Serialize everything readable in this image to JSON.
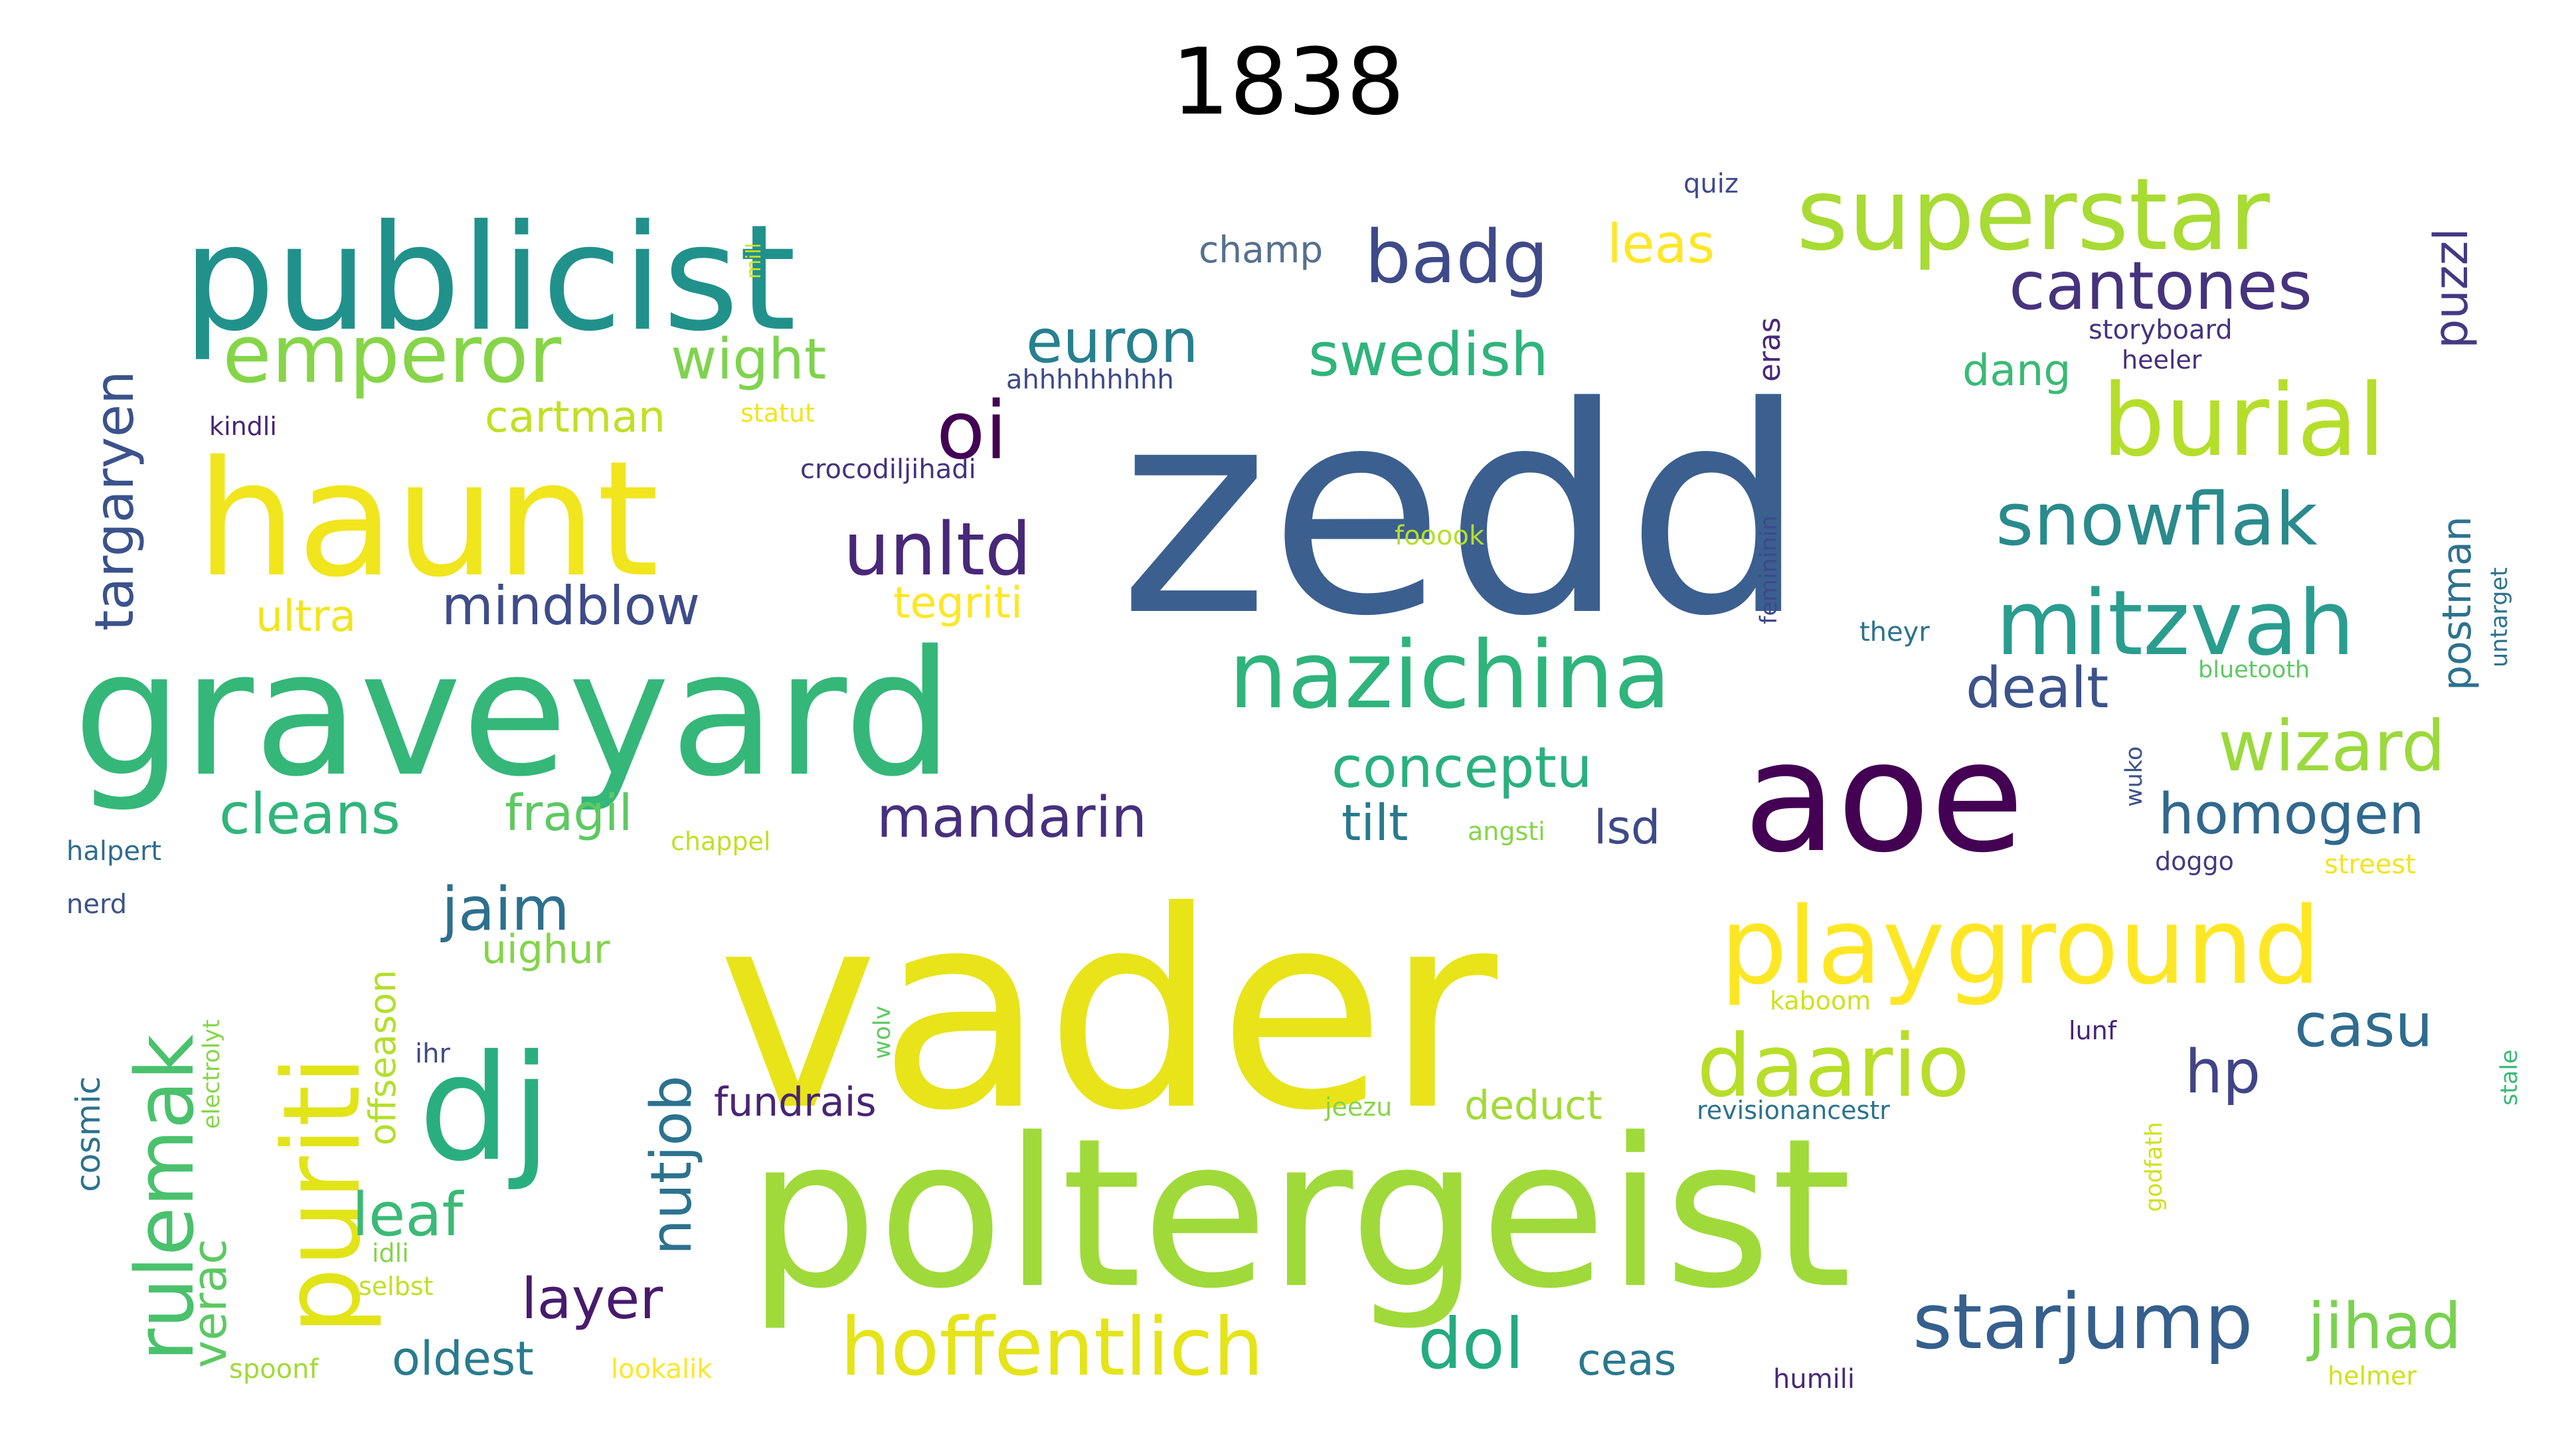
{
  "title": "1838",
  "colors": {
    "background": "#ffffff",
    "title": "#000000"
  },
  "words": [
    {
      "text": "zedd",
      "color": "#3b5f8f"
    },
    {
      "text": "vader",
      "color": "#e8e419"
    },
    {
      "text": "poltergeist",
      "color": "#9fda3a"
    },
    {
      "text": "graveyard",
      "color": "#35b779"
    },
    {
      "text": "publicist",
      "color": "#21918c"
    },
    {
      "text": "haunt",
      "color": "#f1e51d"
    },
    {
      "text": "aoe",
      "color": "#440154"
    },
    {
      "text": "dj",
      "color": "#29af7f"
    },
    {
      "text": "playground",
      "color": "#fde725"
    },
    {
      "text": "superstar",
      "color": "#a8db34"
    },
    {
      "text": "nazichina",
      "color": "#2fb47c"
    },
    {
      "text": "puriti",
      "color": "#e2e418"
    },
    {
      "text": "rulemak",
      "color": "#4ac16d"
    },
    {
      "text": "mitzvah",
      "color": "#2a9d8f"
    },
    {
      "text": "burial",
      "color": "#b5de2b"
    },
    {
      "text": "emperor",
      "color": "#86d549"
    },
    {
      "text": "daario",
      "color": "#b8de29"
    },
    {
      "text": "hoffentlich",
      "color": "#e5e419"
    },
    {
      "text": "snowflak",
      "color": "#2a8a8c"
    },
    {
      "text": "starjump",
      "color": "#355f8d"
    },
    {
      "text": "cantones",
      "color": "#46337e"
    },
    {
      "text": "badg",
      "color": "#3e4a89"
    },
    {
      "text": "oi",
      "color": "#440154"
    },
    {
      "text": "unltd",
      "color": "#482878"
    },
    {
      "text": "wizard",
      "color": "#9bd93c"
    },
    {
      "text": "dol",
      "color": "#25ab82"
    },
    {
      "text": "jihad",
      "color": "#7ad151"
    },
    {
      "text": "targaryen",
      "color": "#3b528b"
    },
    {
      "text": "mandarin",
      "color": "#46307e"
    },
    {
      "text": "homogen",
      "color": "#31688e"
    },
    {
      "text": "conceptu",
      "color": "#2ab07f"
    },
    {
      "text": "cleans",
      "color": "#31b57b"
    },
    {
      "text": "euron",
      "color": "#27808e"
    },
    {
      "text": "swedish",
      "color": "#2fb47c"
    },
    {
      "text": "wight",
      "color": "#7fd34e"
    },
    {
      "text": "dealt",
      "color": "#3b528b"
    },
    {
      "text": "nutjob",
      "color": "#2c728e"
    },
    {
      "text": "layer",
      "color": "#481a6c"
    },
    {
      "text": "jaim",
      "color": "#2d708e"
    },
    {
      "text": "leaf",
      "color": "#3aba76"
    },
    {
      "text": "fragil",
      "color": "#5ec962"
    },
    {
      "text": "hp",
      "color": "#414487"
    },
    {
      "text": "casu",
      "color": "#2f6c8e"
    },
    {
      "text": "mindblow",
      "color": "#3e4c8a"
    },
    {
      "text": "verac",
      "color": "#5cc863"
    },
    {
      "text": "leas",
      "color": "#fde725"
    },
    {
      "text": "oldest",
      "color": "#297b8e"
    },
    {
      "text": "tilt",
      "color": "#29798e"
    },
    {
      "text": "lsd",
      "color": "#3e4989"
    },
    {
      "text": "offseason",
      "color": "#b5de2b"
    },
    {
      "text": "deduct",
      "color": "#a2da37"
    },
    {
      "text": "fundrais",
      "color": "#482475"
    },
    {
      "text": "uighur",
      "color": "#84d44b"
    },
    {
      "text": "cartman",
      "color": "#c2df23"
    },
    {
      "text": "ultra",
      "color": "#f1e51d"
    },
    {
      "text": "tegriti",
      "color": "#fde725"
    },
    {
      "text": "ceas",
      "color": "#2a788e"
    },
    {
      "text": "champ",
      "color": "#56708f"
    },
    {
      "text": "dang",
      "color": "#3aba76"
    },
    {
      "text": "puzzl",
      "color": "#443983"
    },
    {
      "text": "postman",
      "color": "#2c728e"
    },
    {
      "text": "eras",
      "color": "#482878"
    },
    {
      "text": "quiz",
      "color": "#3e4a89"
    },
    {
      "text": "mill",
      "color": "#d0e11c"
    },
    {
      "text": "storyboard",
      "color": "#46337e"
    },
    {
      "text": "heeler",
      "color": "#472d7b"
    },
    {
      "text": "ahhhhhhhhh",
      "color": "#3e4989"
    },
    {
      "text": "statut",
      "color": "#f1e51d"
    },
    {
      "text": "kindli",
      "color": "#482475"
    },
    {
      "text": "crocodiljihadi",
      "color": "#46327e"
    },
    {
      "text": "fooook",
      "color": "#b5de2b"
    },
    {
      "text": "femininin",
      "color": "#3e4989"
    },
    {
      "text": "untarget",
      "color": "#2c728e"
    },
    {
      "text": "theyr",
      "color": "#2c728e"
    },
    {
      "text": "bluetooth",
      "color": "#5ec962"
    },
    {
      "text": "wuko",
      "color": "#3b528b"
    },
    {
      "text": "halpert",
      "color": "#2f6c8e"
    },
    {
      "text": "chappel",
      "color": "#c2df23"
    },
    {
      "text": "angsti",
      "color": "#86d549"
    },
    {
      "text": "doggo",
      "color": "#443983"
    },
    {
      "text": "streest",
      "color": "#f1e51d"
    },
    {
      "text": "nerd",
      "color": "#3b528b"
    },
    {
      "text": "cosmic",
      "color": "#2c728e"
    },
    {
      "text": "electrolyt",
      "color": "#86d549"
    },
    {
      "text": "ihr",
      "color": "#3e4989"
    },
    {
      "text": "wolv",
      "color": "#5ec962"
    },
    {
      "text": "kaboom",
      "color": "#d0e11c"
    },
    {
      "text": "lunf",
      "color": "#482475"
    },
    {
      "text": "stale",
      "color": "#3aba76"
    },
    {
      "text": "revisionancestr",
      "color": "#2c728e"
    },
    {
      "text": "jeezu",
      "color": "#86d549"
    },
    {
      "text": "godfath",
      "color": "#d0e11c"
    },
    {
      "text": "idli",
      "color": "#84d44b"
    },
    {
      "text": "selbst",
      "color": "#c2df23"
    },
    {
      "text": "spoonf",
      "color": "#a2da37"
    },
    {
      "text": "lookalik",
      "color": "#fde725"
    },
    {
      "text": "humili",
      "color": "#482878"
    },
    {
      "text": "helmer",
      "color": "#d0e11c"
    }
  ]
}
